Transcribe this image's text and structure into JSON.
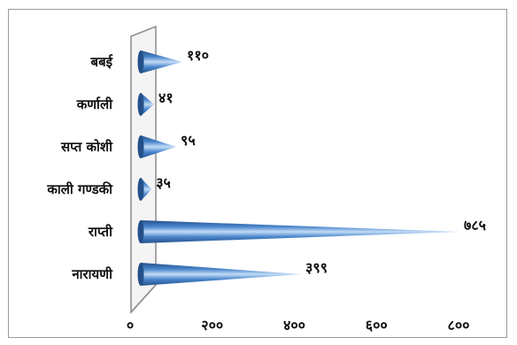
{
  "chart_data": {
    "type": "bar",
    "orientation": "horizontal",
    "style": "3d-cone",
    "categories": [
      "बबई",
      "कर्णाली",
      "सप्त कोशी",
      "काली गण्डकी",
      "राप्ती",
      "नारायणी"
    ],
    "values": [
      110,
      41,
      95,
      35,
      785,
      399
    ],
    "value_labels": [
      "११०",
      "४१",
      "९५",
      "३५",
      "७८५",
      "३९९"
    ],
    "xlim": [
      0,
      800
    ],
    "x_ticks": [
      0,
      200,
      400,
      600,
      800
    ],
    "x_tick_labels": [
      "०",
      "२००",
      "४००",
      "६००",
      "८००"
    ],
    "grid": false,
    "legend": "none",
    "colors": {
      "bar_dark": "#24508a",
      "bar_mid": "#4a86cc",
      "bar_light": "#c2dcf6",
      "wall": "#8c8c8c"
    }
  }
}
